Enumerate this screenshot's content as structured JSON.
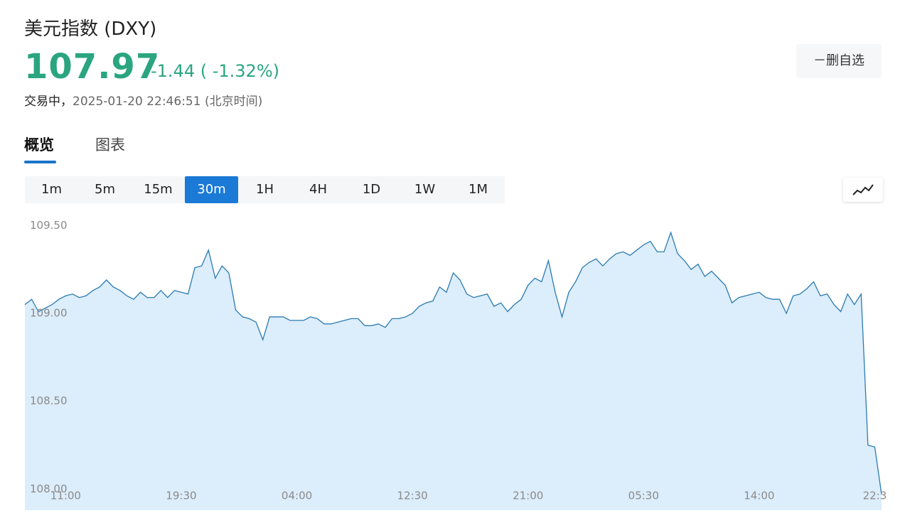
{
  "header": {
    "title": "美元指数 (DXY)",
    "price": "107.97",
    "change": "-1.44 ( -1.32%)",
    "status": "交易中，",
    "timestamp": "2025-01-20 22:46:51",
    "timezone": "(北京时间)",
    "favorite_button": "－删自选"
  },
  "tabs": [
    "概览",
    "图表"
  ],
  "periods": [
    "1m",
    "5m",
    "15m",
    "30m",
    "1H",
    "4H",
    "1D",
    "1W",
    "1M"
  ],
  "active_period": 3,
  "chart_data": {
    "type": "area",
    "color": "#2b7bb0",
    "fill_color": "#dcedfb",
    "values": [
      109.05,
      109.08,
      109.01,
      109.03,
      109.05,
      109.08,
      109.1,
      109.11,
      109.09,
      109.1,
      109.13,
      109.15,
      109.19,
      109.15,
      109.13,
      109.1,
      109.08,
      109.12,
      109.09,
      109.09,
      109.13,
      109.09,
      109.13,
      109.12,
      109.11,
      109.26,
      109.27,
      109.36,
      109.2,
      109.27,
      109.23,
      109.02,
      108.98,
      108.97,
      108.95,
      108.85,
      108.98,
      108.98,
      108.98,
      108.96,
      108.96,
      108.96,
      108.98,
      108.97,
      108.94,
      108.94,
      108.95,
      108.96,
      108.97,
      108.97,
      108.93,
      108.93,
      108.94,
      108.92,
      108.97,
      108.97,
      108.98,
      109.0,
      109.04,
      109.06,
      109.07,
      109.15,
      109.12,
      109.23,
      109.19,
      109.11,
      109.09,
      109.1,
      109.11,
      109.04,
      109.06,
      109.01,
      109.05,
      109.08,
      109.16,
      109.2,
      109.18,
      109.3,
      109.12,
      108.98,
      109.12,
      109.18,
      109.26,
      109.29,
      109.31,
      109.27,
      109.31,
      109.34,
      109.35,
      109.33,
      109.36,
      109.39,
      109.41,
      109.35,
      109.35,
      109.46,
      109.34,
      109.3,
      109.25,
      109.28,
      109.21,
      109.24,
      109.2,
      109.16,
      109.06,
      109.09,
      109.1,
      109.11,
      109.12,
      109.09,
      109.08,
      109.08,
      109.0,
      109.1,
      109.11,
      109.14,
      109.18,
      109.1,
      109.11,
      109.05,
      109.01,
      109.11,
      109.05,
      109.11,
      108.25,
      108.24,
      107.97
    ],
    "ylim": [
      107.88,
      109.57
    ],
    "yticks": [
      {
        "value": 108,
        "label": "108.00"
      },
      {
        "value": 108.5,
        "label": "108.50"
      },
      {
        "value": 109,
        "label": "109.00"
      },
      {
        "value": 109.5,
        "label": "109.50"
      }
    ],
    "xticks": [
      {
        "value": 6,
        "label": "11:00"
      },
      {
        "value": 23,
        "label": "19:30"
      },
      {
        "value": 40,
        "label": "04:00"
      },
      {
        "value": 57,
        "label": "12:30"
      },
      {
        "value": 74,
        "label": "21:00"
      },
      {
        "value": 91,
        "label": "05:30"
      },
      {
        "value": 108,
        "label": "14:00"
      },
      {
        "value": 125,
        "label": "22:3"
      }
    ],
    "grid": false
  }
}
